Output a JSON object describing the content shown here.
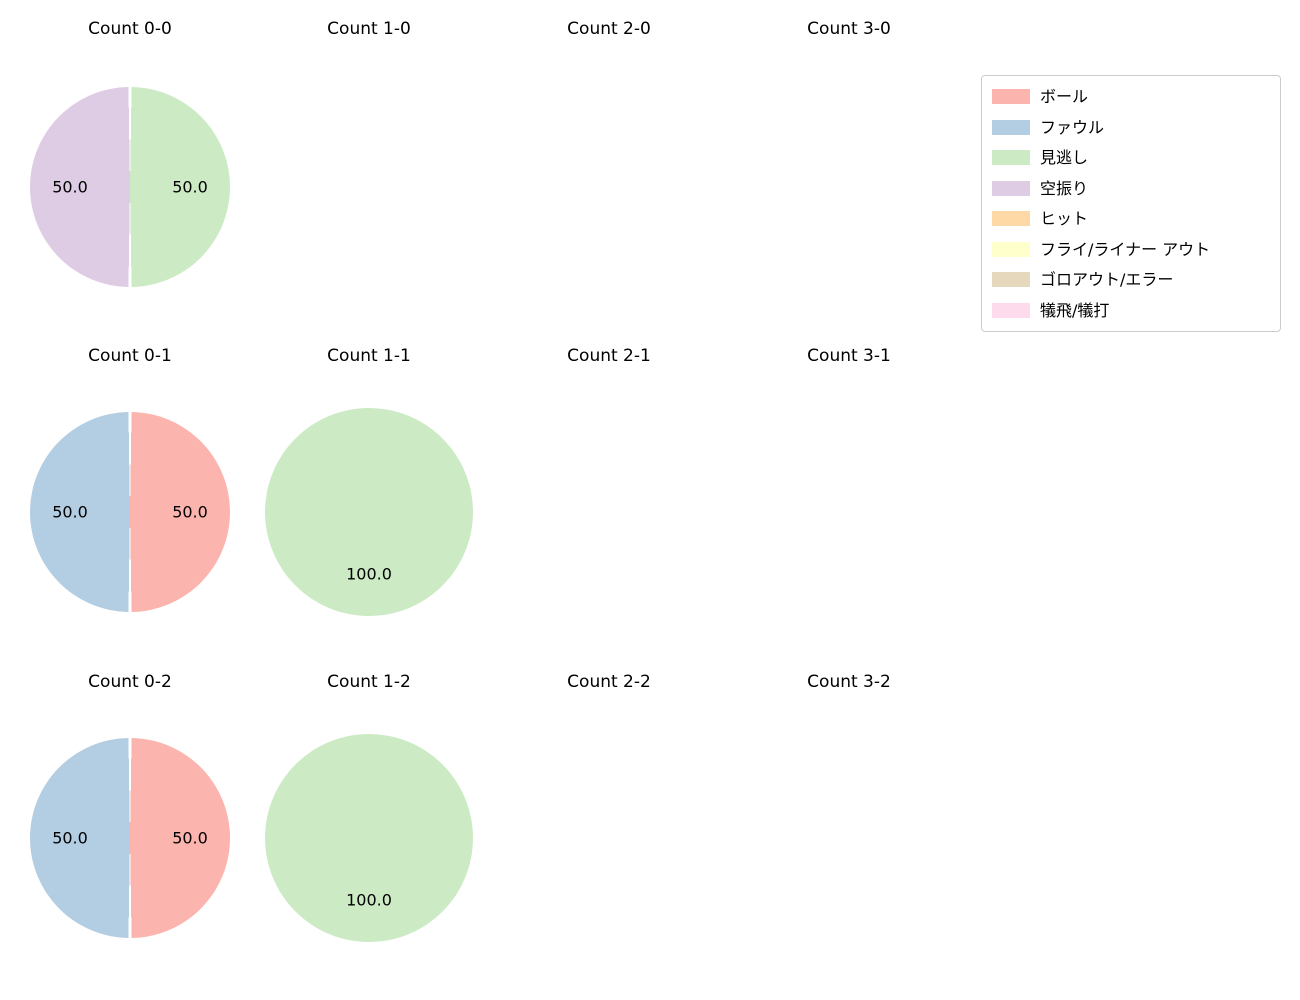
{
  "figure": {
    "background": "#ffffff"
  },
  "legend": {
    "position": "upper-right",
    "items": [
      {
        "label": "ボール",
        "color": "#fbb4ae"
      },
      {
        "label": "ファウル",
        "color": "#b3cde3"
      },
      {
        "label": "見逃し",
        "color": "#ccebc5"
      },
      {
        "label": "空振り",
        "color": "#decbe4"
      },
      {
        "label": "ヒット",
        "color": "#fed9a6"
      },
      {
        "label": "フライ/ライナー アウト",
        "color": "#ffffcc"
      },
      {
        "label": "ゴロアウト/エラー",
        "color": "#e5d8bd"
      },
      {
        "label": "犠飛/犠打",
        "color": "#fddaec"
      }
    ]
  },
  "chart_data": [
    {
      "type": "pie",
      "title": "Count 0-0",
      "start_angle_deg_from_top_cw": 0,
      "label_format": "one_decimal_percent",
      "slices": [
        {
          "label": "見逃し",
          "value": 50.0,
          "color": "#ccebc5"
        },
        {
          "label": "空振り",
          "value": 50.0,
          "color": "#decbe4"
        }
      ]
    },
    {
      "type": "pie",
      "title": "Count 1-0",
      "slices": []
    },
    {
      "type": "pie",
      "title": "Count 2-0",
      "slices": []
    },
    {
      "type": "pie",
      "title": "Count 3-0",
      "slices": []
    },
    {
      "type": "pie",
      "title": "Count 0-1",
      "start_angle_deg_from_top_cw": 0,
      "label_format": "one_decimal_percent",
      "slices": [
        {
          "label": "ボール",
          "value": 50.0,
          "color": "#fbb4ae"
        },
        {
          "label": "ファウル",
          "value": 50.0,
          "color": "#b3cde3"
        }
      ]
    },
    {
      "type": "pie",
      "title": "Count 1-1",
      "start_angle_deg_from_top_cw": 0,
      "label_format": "one_decimal_percent",
      "slices": [
        {
          "label": "見逃し",
          "value": 100.0,
          "color": "#ccebc5"
        }
      ]
    },
    {
      "type": "pie",
      "title": "Count 2-1",
      "slices": []
    },
    {
      "type": "pie",
      "title": "Count 3-1",
      "slices": []
    },
    {
      "type": "pie",
      "title": "Count 0-2",
      "start_angle_deg_from_top_cw": 0,
      "label_format": "one_decimal_percent",
      "slices": [
        {
          "label": "ボール",
          "value": 50.0,
          "color": "#fbb4ae"
        },
        {
          "label": "ファウル",
          "value": 50.0,
          "color": "#b3cde3"
        }
      ]
    },
    {
      "type": "pie",
      "title": "Count 1-2",
      "start_angle_deg_from_top_cw": 0,
      "label_format": "one_decimal_percent",
      "slices": [
        {
          "label": "見逃し",
          "value": 100.0,
          "color": "#ccebc5"
        }
      ]
    },
    {
      "type": "pie",
      "title": "Count 2-2",
      "slices": []
    },
    {
      "type": "pie",
      "title": "Count 3-2",
      "slices": []
    }
  ]
}
